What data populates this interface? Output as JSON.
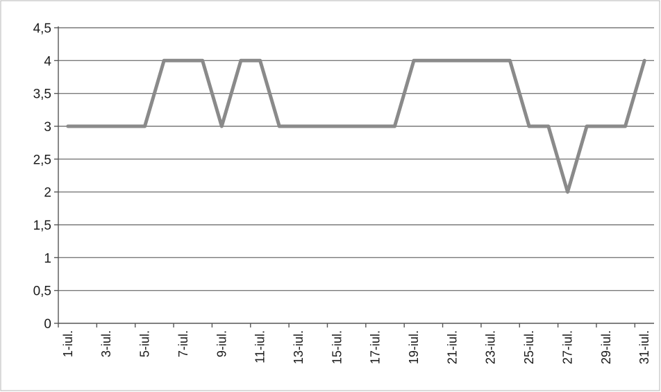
{
  "chart_data": {
    "type": "line",
    "title": "",
    "xlabel": "",
    "ylabel": "",
    "ylim": [
      0,
      4.5
    ],
    "yticks": [
      "0",
      "0,5",
      "1",
      "1,5",
      "2",
      "2,5",
      "3",
      "3,5",
      "4",
      "4,5"
    ],
    "categories": [
      "1-iul.",
      "2-iul.",
      "3-iul.",
      "4-iul.",
      "5-iul.",
      "6-iul.",
      "7-iul.",
      "8-iul.",
      "9-iul.",
      "10-iul.",
      "11-iul.",
      "12-iul.",
      "13-iul.",
      "14-iul.",
      "15-iul.",
      "16-iul.",
      "17-iul.",
      "18-iul.",
      "19-iul.",
      "20-iul.",
      "21-iul.",
      "22-iul.",
      "23-iul.",
      "24-iul.",
      "25-iul.",
      "26-iul.",
      "27-iul.",
      "28-iul.",
      "29-iul.",
      "30-iul.",
      "31-iul."
    ],
    "tick_labels_shown": [
      "1-iul.",
      "3-iul.",
      "5-iul.",
      "7-iul.",
      "9-iul.",
      "11-iul.",
      "13-iul.",
      "15-iul.",
      "17-iul.",
      "19-iul.",
      "21-iul.",
      "23-iul.",
      "25-iul.",
      "27-iul.",
      "29-iul.",
      "31-iul."
    ],
    "series": [
      {
        "values": [
          3,
          3,
          3,
          3,
          3,
          4,
          4,
          4,
          3,
          4,
          4,
          3,
          3,
          3,
          3,
          3,
          3,
          3,
          4,
          4,
          4,
          4,
          4,
          4,
          3,
          3,
          2,
          3,
          3,
          3,
          4
        ]
      }
    ],
    "grid": true,
    "legend": "none",
    "colors": {
      "line": "#8a8a8a",
      "grid": "#7a7a7a",
      "axis": "#555555"
    }
  }
}
